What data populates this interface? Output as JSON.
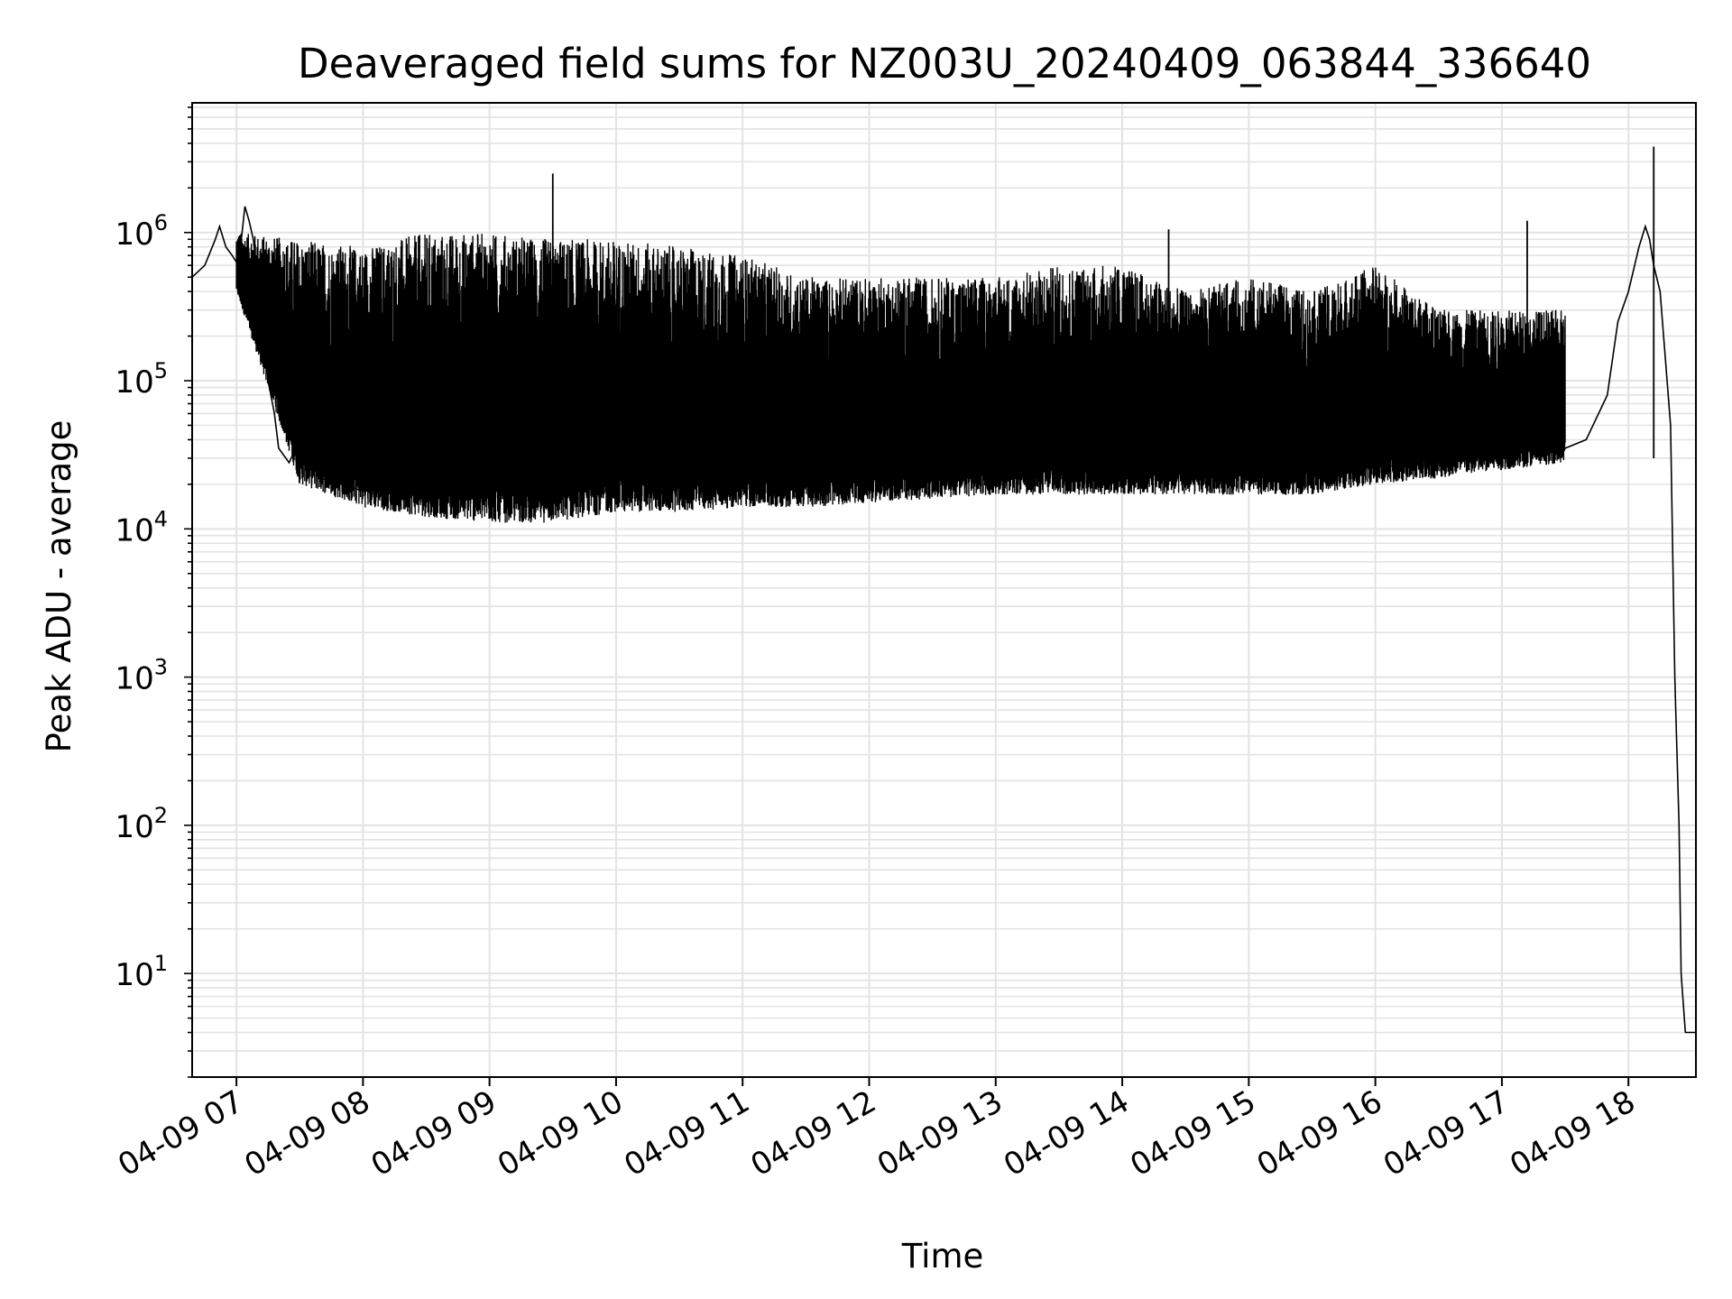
{
  "chart_data": {
    "type": "line",
    "title": "Deaveraged field sums for NZ003U_20240409_063844_336640",
    "xlabel": "Time",
    "ylabel": "Peak ADU - average",
    "yscale": "log",
    "grid": true,
    "line_color": "#000000",
    "grid_color": "#e3e3e3",
    "xlim": [
      "04-09 06:39",
      "04-09 18:32"
    ],
    "ylim": [
      2,
      7500000
    ],
    "x_ticks": [
      {
        "value": "04-09 07:00",
        "label": "04-09 07"
      },
      {
        "value": "04-09 08:00",
        "label": "04-09 08"
      },
      {
        "value": "04-09 09:00",
        "label": "04-09 09"
      },
      {
        "value": "04-09 10:00",
        "label": "04-09 10"
      },
      {
        "value": "04-09 11:00",
        "label": "04-09 11"
      },
      {
        "value": "04-09 12:00",
        "label": "04-09 12"
      },
      {
        "value": "04-09 13:00",
        "label": "04-09 13"
      },
      {
        "value": "04-09 14:00",
        "label": "04-09 14"
      },
      {
        "value": "04-09 15:00",
        "label": "04-09 15"
      },
      {
        "value": "04-09 16:00",
        "label": "04-09 16"
      },
      {
        "value": "04-09 17:00",
        "label": "04-09 17"
      },
      {
        "value": "04-09 18:00",
        "label": "04-09 18"
      }
    ],
    "y_ticks": [
      {
        "value": 10,
        "base": "10",
        "exp": "1"
      },
      {
        "value": 100,
        "base": "10",
        "exp": "2"
      },
      {
        "value": 1000,
        "base": "10",
        "exp": "3"
      },
      {
        "value": 10000,
        "base": "10",
        "exp": "4"
      },
      {
        "value": 100000,
        "base": "10",
        "exp": "5"
      },
      {
        "value": 1000000,
        "base": "10",
        "exp": "6"
      }
    ],
    "series": [
      {
        "x": [
          "04-09 06:39",
          "04-09 06:45",
          "04-09 06:50",
          "04-09 06:52",
          "04-09 06:55",
          "04-09 06:58",
          "04-09 07:01",
          "04-09 07:04",
          "04-09 07:06",
          "04-09 07:08",
          "04-09 07:10",
          "04-09 07:13",
          "04-09 07:15",
          "04-09 07:18",
          "04-09 07:20",
          "04-09 07:25",
          "04-09 07:30",
          "04-09 07:35",
          "04-09 07:40",
          "04-09 07:50",
          "04-09 08:00",
          "04-09 08:30",
          "04-09 09:00",
          "04-09 09:30",
          "04-09 09:45",
          "04-09 10:00",
          "04-09 10:30",
          "04-09 11:00",
          "04-09 11:30",
          "04-09 12:00",
          "04-09 12:30",
          "04-09 13:00",
          "04-09 13:30",
          "04-09 14:00",
          "04-09 14:30",
          "04-09 15:00",
          "04-09 15:30",
          "04-09 16:00",
          "04-09 16:30",
          "04-09 17:00",
          "04-09 17:30",
          "04-09 17:40",
          "04-09 17:50",
          "04-09 17:55",
          "04-09 18:00",
          "04-09 18:05",
          "04-09 18:08",
          "04-09 18:10",
          "04-09 18:12",
          "04-09 18:15",
          "04-09 18:20",
          "04-09 18:22",
          "04-09 18:24",
          "04-09 18:25",
          "04-09 18:27",
          "04-09 18:32"
        ],
        "y": [
          500000,
          600000,
          900000,
          1100000,
          800000,
          700000,
          600000,
          1500000,
          1200000,
          900000,
          500000,
          200000,
          100000,
          60000,
          35000,
          28000,
          40000,
          30000,
          22000,
          20000,
          18000,
          19000,
          22000,
          25000,
          30000,
          28000,
          30000,
          24000,
          20000,
          22000,
          22000,
          24000,
          25000,
          30000,
          35000,
          28000,
          30000,
          45000,
          40000,
          35000,
          35000,
          40000,
          80000,
          250000,
          400000,
          800000,
          1100000,
          900000,
          600000,
          400000,
          50000,
          1000,
          100,
          10,
          4,
          4
        ]
      }
    ],
    "bursts": [
      {
        "x": "04-09 07:00",
        "top": 1000000,
        "bottom": 400000
      },
      {
        "x": "04-09 07:30",
        "top": 900000,
        "bottom": 20000
      },
      {
        "x": "04-09 08:00",
        "top": 800000,
        "bottom": 14000
      },
      {
        "x": "04-09 08:30",
        "top": 1000000,
        "bottom": 12000
      },
      {
        "x": "04-09 09:00",
        "top": 1000000,
        "bottom": 11000
      },
      {
        "x": "04-09 09:30",
        "top": 900000,
        "bottom": 11000
      },
      {
        "x": "04-09 09:45",
        "top": 900000,
        "bottom": 12000
      },
      {
        "x": "04-09 10:00",
        "top": 900000,
        "bottom": 13000
      },
      {
        "x": "04-09 10:30",
        "top": 800000,
        "bottom": 13000
      },
      {
        "x": "04-09 11:00",
        "top": 700000,
        "bottom": 14000
      },
      {
        "x": "04-09 11:30",
        "top": 500000,
        "bottom": 14000
      },
      {
        "x": "04-09 12:00",
        "top": 500000,
        "bottom": 15000
      },
      {
        "x": "04-09 12:30",
        "top": 500000,
        "bottom": 16000
      },
      {
        "x": "04-09 13:00",
        "top": 500000,
        "bottom": 17000
      },
      {
        "x": "04-09 13:30",
        "top": 600000,
        "bottom": 17000
      },
      {
        "x": "04-09 14:00",
        "top": 600000,
        "bottom": 17000
      },
      {
        "x": "04-09 14:30",
        "top": 400000,
        "bottom": 17000
      },
      {
        "x": "04-09 15:00",
        "top": 500000,
        "bottom": 17000
      },
      {
        "x": "04-09 15:30",
        "top": 400000,
        "bottom": 17000
      },
      {
        "x": "04-09 16:00",
        "top": 600000,
        "bottom": 20000
      },
      {
        "x": "04-09 16:30",
        "top": 300000,
        "bottom": 22000
      },
      {
        "x": "04-09 17:00",
        "top": 300000,
        "bottom": 25000
      },
      {
        "x": "04-09 17:30",
        "top": 300000,
        "bottom": 28000
      }
    ],
    "spikes": [
      {
        "x": "04-09 09:30",
        "y": 2500000
      },
      {
        "x": "04-09 18:12",
        "y": 3800000
      },
      {
        "x": "04-09 17:12",
        "y": 1200000
      },
      {
        "x": "04-09 14:22",
        "y": 1050000
      }
    ]
  }
}
